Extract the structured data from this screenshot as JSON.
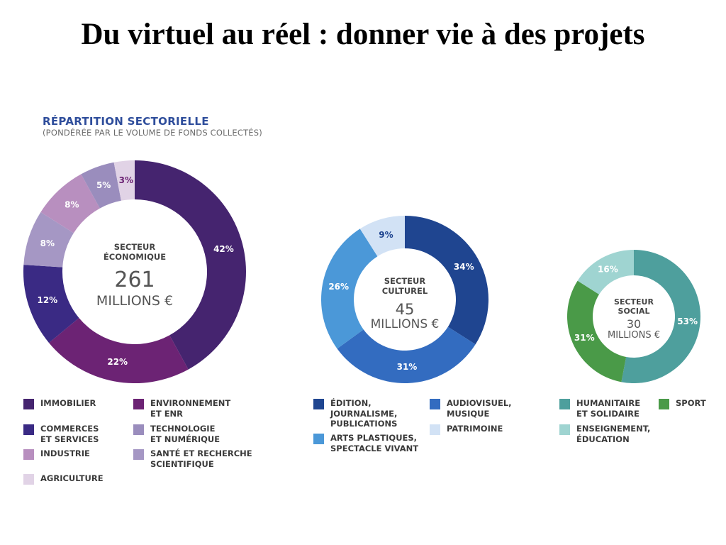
{
  "slide": {
    "title": "Du virtuel au réel : donner vie à des projets"
  },
  "figure": {
    "heading": "RÉPARTITION SECTORIELLE",
    "subheading": "(PONDÉRÉE PAR LE VOLUME DE FONDS COLLECTÉS)"
  },
  "chart_data": [
    {
      "type": "pie",
      "title": "SECTEUR\nÉCONOMIQUE",
      "total_value": "261",
      "total_unit": "MILLIONS €",
      "categories": [
        "IMMOBILIER",
        "ENVIRONNEMENT\nET ENR",
        "COMMERCES\nET SERVICES",
        "SANTÉ ET RECHERCHE\nSCIENTIFIQUE",
        "INDUSTRIE",
        "TECHNOLOGIE\nET NUMÉRIQUE",
        "AGRICULTURE"
      ],
      "values": [
        42,
        22,
        12,
        8,
        8,
        5,
        3
      ],
      "labels": [
        "42%",
        "22%",
        "12%",
        "8%",
        "8%",
        "5%",
        "3%"
      ],
      "colors": [
        "#45246f",
        "#6c2374",
        "#3a2a84",
        "#a597c4",
        "#b88fbf",
        "#9a8dbd",
        "#e1d3e6"
      ],
      "label_colors": [
        "#ffffff",
        "#ffffff",
        "#ffffff",
        "#ffffff",
        "#ffffff",
        "#ffffff",
        "#6c2374"
      ],
      "legend_order": [
        0,
        1,
        2,
        5,
        4,
        3,
        6
      ]
    },
    {
      "type": "pie",
      "title": "SECTEUR\nCULTUREL",
      "total_value": "45",
      "total_unit": "MILLIONS €",
      "categories": [
        "ÉDITION,\nJOURNALISME,\nPUBLICATIONS",
        "AUDIOVISUEL,\nMUSIQUE",
        "ARTS PLASTIQUES,\nSPECTACLE VIVANT",
        "PATRIMOINE"
      ],
      "values": [
        34,
        31,
        26,
        9
      ],
      "labels": [
        "34%",
        "31%",
        "26%",
        "9%"
      ],
      "colors": [
        "#1f4590",
        "#336cc0",
        "#4b98d8",
        "#d2e2f5"
      ],
      "label_colors": [
        "#ffffff",
        "#ffffff",
        "#ffffff",
        "#1f4590"
      ],
      "legend_order": [
        0,
        1,
        2,
        3
      ]
    },
    {
      "type": "pie",
      "title": "SECTEUR\nSOCIAL",
      "total_value": "30",
      "total_unit": "MILLIONS €",
      "categories": [
        "HUMANITAIRE\nET SOLIDAIRE",
        "SPORT",
        "ENSEIGNEMENT,\nÉDUCATION"
      ],
      "values": [
        53,
        31,
        16
      ],
      "labels": [
        "53%",
        "31%",
        "16%"
      ],
      "colors": [
        "#4e9f9d",
        "#4a9a48",
        "#9fd4d1"
      ],
      "label_colors": [
        "#ffffff",
        "#ffffff",
        "#ffffff"
      ],
      "legend_order": [
        0,
        1,
        2
      ]
    }
  ]
}
